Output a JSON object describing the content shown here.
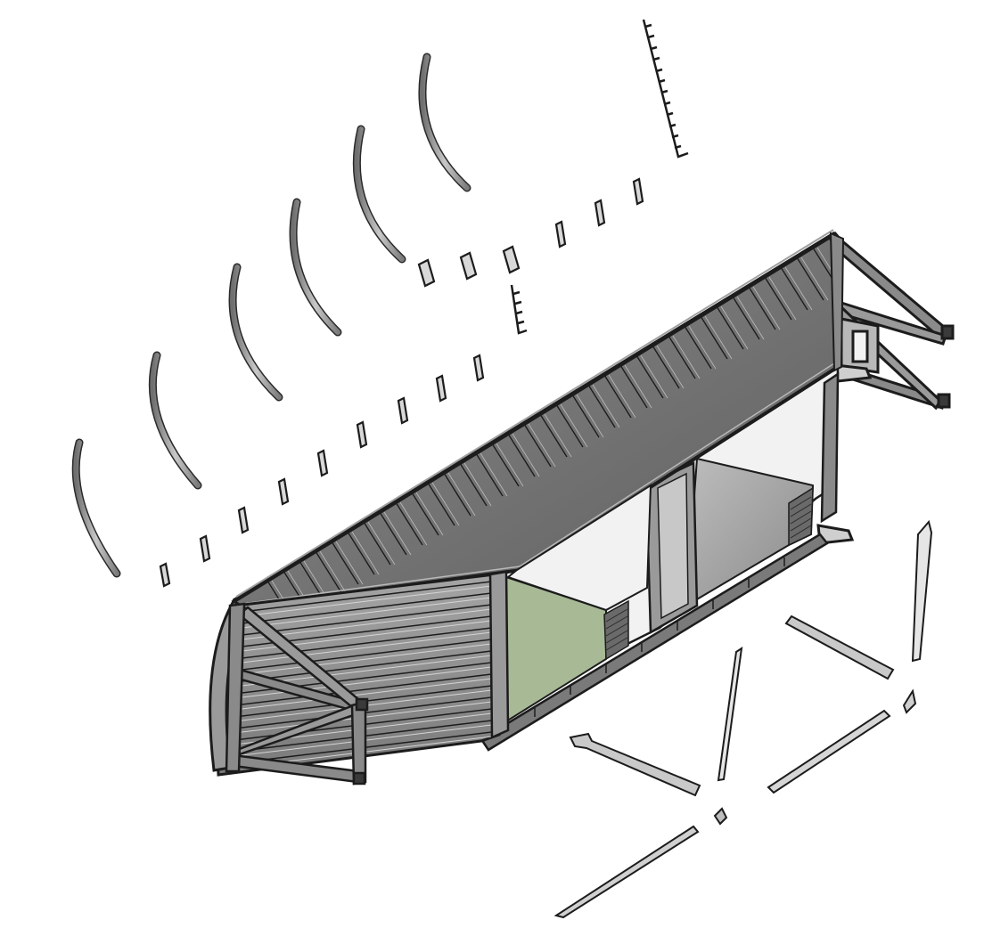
{
  "diagram": {
    "type": "exploded-isometric-assembly",
    "colors": {
      "background": "#ffffff",
      "outline": "#1c1c1c",
      "roof_slat": "#6e6e6e",
      "roof_slat_light": "#a9a9a9",
      "side_slat": "#8a8a8a",
      "side_slat_light": "#c2c2c2",
      "frame": "#7d7d7d",
      "panel_white": "#f1f1f1",
      "panel_grey": "#9a9a9a",
      "panel_green": "#a8b996",
      "part_grey": "#b5b5b5",
      "part_light": "#dedede"
    }
  }
}
